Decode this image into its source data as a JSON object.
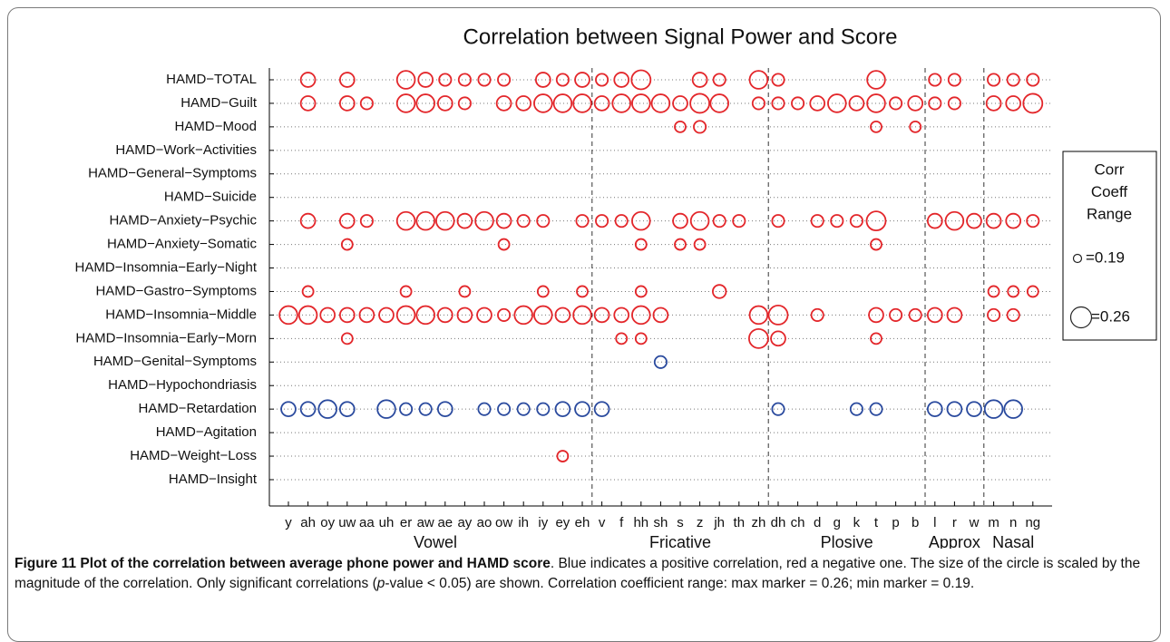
{
  "chart_data": {
    "type": "bubble",
    "title": "Correlation between Signal Power and Score",
    "groups": [
      {
        "name": "Vowel",
        "categories": [
          "y",
          "ah",
          "oy",
          "uw",
          "aa",
          "uh",
          "er",
          "aw",
          "ae",
          "ay",
          "ao",
          "ow",
          "ih",
          "iy",
          "ey",
          "eh"
        ]
      },
      {
        "name": "Fricative",
        "categories": [
          "v",
          "f",
          "hh",
          "sh",
          "s",
          "z",
          "jh",
          "th",
          "zh"
        ]
      },
      {
        "name": "Plosive",
        "categories": [
          "dh",
          "ch",
          "d",
          "g",
          "k",
          "t",
          "p",
          "b"
        ]
      },
      {
        "name": "Approx",
        "categories": [
          "l",
          "r",
          "w"
        ]
      },
      {
        "name": "Nasal",
        "categories": [
          "m",
          "n",
          "ng"
        ]
      }
    ],
    "positive_color": "#2a4a9e",
    "negative_color": "#e3262a",
    "grid": true,
    "legend_title": [
      "Corr",
      "Coeff",
      "Range"
    ],
    "size_legend": [
      {
        "value": 0.19,
        "label": "=0.19"
      },
      {
        "value": 0.26,
        "label": "=0.26"
      }
    ],
    "series": [
      {
        "name": "HAMD−TOTAL",
        "values": [
          null,
          -0.22,
          null,
          -0.22,
          null,
          null,
          -0.25,
          -0.22,
          -0.2,
          -0.2,
          -0.2,
          -0.2,
          null,
          -0.22,
          -0.2,
          -0.22,
          -0.2,
          -0.22,
          -0.26,
          null,
          null,
          -0.22,
          -0.2,
          null,
          -0.25,
          -0.2,
          null,
          null,
          null,
          null,
          -0.25,
          null,
          null,
          -0.2,
          -0.2,
          null,
          -0.2,
          -0.2,
          -0.2
        ]
      },
      {
        "name": "HAMD−Guilt",
        "values": [
          null,
          -0.22,
          null,
          -0.22,
          -0.2,
          null,
          -0.25,
          -0.25,
          -0.22,
          -0.2,
          null,
          -0.22,
          -0.22,
          -0.25,
          -0.25,
          -0.25,
          -0.22,
          -0.25,
          -0.25,
          -0.25,
          -0.22,
          -0.26,
          -0.25,
          null,
          -0.2,
          -0.2,
          -0.2,
          -0.22,
          -0.25,
          -0.22,
          -0.25,
          -0.2,
          -0.22,
          -0.2,
          -0.2,
          null,
          -0.22,
          -0.22,
          -0.26
        ]
      },
      {
        "name": "HAMD−Mood",
        "values": [
          null,
          null,
          null,
          null,
          null,
          null,
          null,
          null,
          null,
          null,
          null,
          null,
          null,
          null,
          null,
          null,
          null,
          null,
          null,
          null,
          -0.19,
          -0.2,
          null,
          null,
          null,
          null,
          null,
          null,
          null,
          null,
          -0.19,
          null,
          -0.19,
          null,
          null,
          null,
          null,
          null,
          null
        ]
      },
      {
        "name": "HAMD−Work−Activities",
        "values": [
          null,
          null,
          null,
          null,
          null,
          null,
          null,
          null,
          null,
          null,
          null,
          null,
          null,
          null,
          null,
          null,
          null,
          null,
          null,
          null,
          null,
          null,
          null,
          null,
          null,
          null,
          null,
          null,
          null,
          null,
          null,
          null,
          null,
          null,
          null,
          null,
          null,
          null,
          null
        ]
      },
      {
        "name": "HAMD−General−Symptoms",
        "values": [
          null,
          null,
          null,
          null,
          null,
          null,
          null,
          null,
          null,
          null,
          null,
          null,
          null,
          null,
          null,
          null,
          null,
          null,
          null,
          null,
          null,
          null,
          null,
          null,
          null,
          null,
          null,
          null,
          null,
          null,
          null,
          null,
          null,
          null,
          null,
          null,
          null,
          null,
          null
        ]
      },
      {
        "name": "HAMD−Suicide",
        "values": [
          null,
          null,
          null,
          null,
          null,
          null,
          null,
          null,
          null,
          null,
          null,
          null,
          null,
          null,
          null,
          null,
          null,
          null,
          null,
          null,
          null,
          null,
          null,
          null,
          null,
          null,
          null,
          null,
          null,
          null,
          null,
          null,
          null,
          null,
          null,
          null,
          null,
          null,
          null
        ]
      },
      {
        "name": "HAMD−Anxiety−Psychic",
        "values": [
          null,
          -0.22,
          null,
          -0.22,
          -0.2,
          null,
          -0.25,
          -0.25,
          -0.25,
          -0.22,
          -0.25,
          -0.22,
          -0.2,
          -0.2,
          null,
          -0.2,
          -0.2,
          -0.2,
          -0.25,
          null,
          -0.22,
          -0.25,
          -0.2,
          -0.2,
          null,
          -0.2,
          null,
          -0.2,
          -0.2,
          -0.2,
          -0.26,
          null,
          null,
          -0.22,
          -0.25,
          -0.22,
          -0.22,
          -0.22,
          -0.2
        ]
      },
      {
        "name": "HAMD−Anxiety−Somatic",
        "values": [
          null,
          null,
          null,
          -0.19,
          null,
          null,
          null,
          null,
          null,
          null,
          null,
          -0.19,
          null,
          null,
          null,
          null,
          null,
          null,
          -0.19,
          null,
          -0.19,
          -0.19,
          null,
          null,
          null,
          null,
          null,
          null,
          null,
          null,
          -0.19,
          null,
          null,
          null,
          null,
          null,
          null,
          null,
          null
        ]
      },
      {
        "name": "HAMD−Insomnia−Early−Night",
        "values": [
          null,
          null,
          null,
          null,
          null,
          null,
          null,
          null,
          null,
          null,
          null,
          null,
          null,
          null,
          null,
          null,
          null,
          null,
          null,
          null,
          null,
          null,
          null,
          null,
          null,
          null,
          null,
          null,
          null,
          null,
          null,
          null,
          null,
          null,
          null,
          null,
          null,
          null,
          null
        ]
      },
      {
        "name": "HAMD−Gastro−Symptoms",
        "values": [
          null,
          -0.19,
          null,
          null,
          null,
          null,
          -0.19,
          null,
          null,
          -0.19,
          null,
          null,
          null,
          -0.19,
          null,
          -0.19,
          null,
          null,
          -0.19,
          null,
          null,
          null,
          -0.21,
          null,
          null,
          null,
          null,
          null,
          null,
          null,
          null,
          null,
          null,
          null,
          null,
          null,
          -0.19,
          -0.19,
          -0.19
        ]
      },
      {
        "name": "HAMD−Insomnia−Middle",
        "values": [
          -0.25,
          -0.25,
          -0.22,
          -0.22,
          -0.22,
          -0.22,
          -0.25,
          -0.25,
          -0.22,
          -0.22,
          -0.22,
          -0.2,
          -0.25,
          -0.25,
          -0.22,
          -0.25,
          -0.22,
          -0.22,
          -0.25,
          -0.22,
          null,
          null,
          null,
          null,
          -0.25,
          -0.26,
          null,
          -0.2,
          null,
          null,
          -0.22,
          -0.2,
          -0.2,
          -0.22,
          -0.22,
          null,
          -0.2,
          -0.2,
          null
        ]
      },
      {
        "name": "HAMD−Insomnia−Early−Morn",
        "values": [
          null,
          null,
          null,
          -0.19,
          null,
          null,
          null,
          null,
          null,
          null,
          null,
          null,
          null,
          null,
          null,
          null,
          null,
          -0.19,
          -0.19,
          null,
          null,
          null,
          null,
          null,
          -0.26,
          -0.22,
          null,
          null,
          null,
          null,
          -0.19,
          null,
          null,
          null,
          null,
          null,
          null,
          null,
          null
        ]
      },
      {
        "name": "HAMD−Genital−Symptoms",
        "values": [
          null,
          null,
          null,
          null,
          null,
          null,
          null,
          null,
          null,
          null,
          null,
          null,
          null,
          null,
          null,
          null,
          null,
          null,
          null,
          0.2,
          null,
          null,
          null,
          null,
          null,
          null,
          null,
          null,
          null,
          null,
          null,
          null,
          null,
          null,
          null,
          null,
          null,
          null,
          null
        ]
      },
      {
        "name": "HAMD−Hypochondriasis",
        "values": [
          null,
          null,
          null,
          null,
          null,
          null,
          null,
          null,
          null,
          null,
          null,
          null,
          null,
          null,
          null,
          null,
          null,
          null,
          null,
          null,
          null,
          null,
          null,
          null,
          null,
          null,
          null,
          null,
          null,
          null,
          null,
          null,
          null,
          null,
          null,
          null,
          null,
          null,
          null
        ]
      },
      {
        "name": "HAMD−Retardation",
        "values": [
          0.22,
          0.22,
          0.25,
          0.22,
          null,
          0.25,
          0.2,
          0.2,
          0.22,
          null,
          0.2,
          0.2,
          0.2,
          0.2,
          0.22,
          0.22,
          0.22,
          null,
          null,
          null,
          null,
          null,
          null,
          null,
          null,
          0.2,
          null,
          null,
          null,
          0.2,
          0.2,
          null,
          null,
          0.22,
          0.22,
          0.22,
          0.25,
          0.25,
          null
        ]
      },
      {
        "name": "HAMD−Agitation",
        "values": [
          null,
          null,
          null,
          null,
          null,
          null,
          null,
          null,
          null,
          null,
          null,
          null,
          null,
          null,
          null,
          null,
          null,
          null,
          null,
          null,
          null,
          null,
          null,
          null,
          null,
          null,
          null,
          null,
          null,
          null,
          null,
          null,
          null,
          null,
          null,
          null,
          null,
          null,
          null
        ]
      },
      {
        "name": "HAMD−Weight−Loss",
        "values": [
          null,
          null,
          null,
          null,
          null,
          null,
          null,
          null,
          null,
          null,
          null,
          null,
          null,
          null,
          -0.19,
          null,
          null,
          null,
          null,
          null,
          null,
          null,
          null,
          null,
          null,
          null,
          null,
          null,
          null,
          null,
          null,
          null,
          null,
          null,
          null,
          null,
          null,
          null,
          null
        ]
      },
      {
        "name": "HAMD−Insight",
        "values": [
          null,
          null,
          null,
          null,
          null,
          null,
          null,
          null,
          null,
          null,
          null,
          null,
          null,
          null,
          null,
          null,
          null,
          null,
          null,
          null,
          null,
          null,
          null,
          null,
          null,
          null,
          null,
          null,
          null,
          null,
          null,
          null,
          null,
          null,
          null,
          null,
          null,
          null,
          null
        ]
      }
    ]
  },
  "caption": {
    "bold": "Figure 11 Plot of the correlation between average phone power and HAMD score",
    "parts": [
      ". Blue indicates a positive correlation, red a negative one. The size of the circle is scaled by the magnitude of the correlation. Only significant correlations (",
      "p",
      "-value < 0.05) are shown. Correlation coefficient range: max marker = 0.26; min marker = 0.19."
    ]
  }
}
